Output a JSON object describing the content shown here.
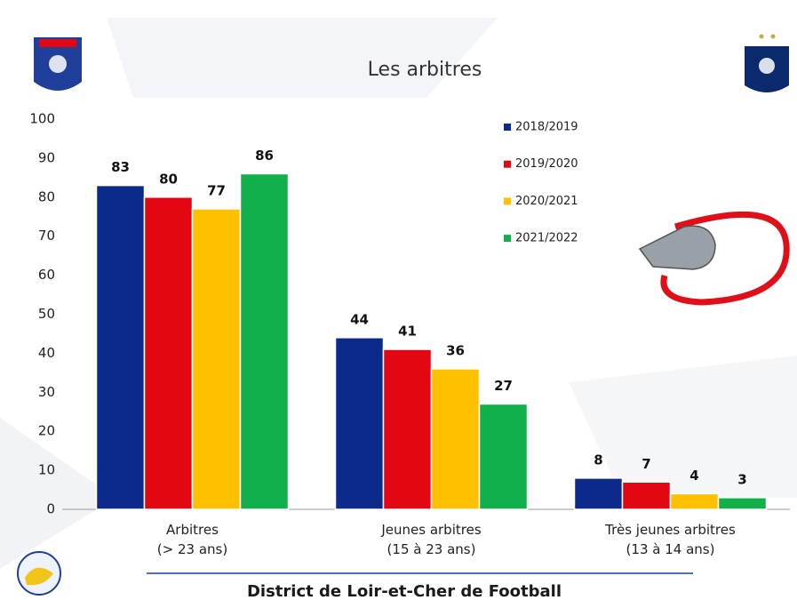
{
  "chart_data": {
    "type": "bar",
    "title": "Les arbitres",
    "footer": "District de Loir-et-Cher de Football",
    "categories": [
      "Arbitres\n(> 23 ans)",
      "Jeunes arbitres\n(15 à 23 ans)",
      "Très jeunes arbitres\n(13 à 14 ans)"
    ],
    "series": [
      {
        "name": "2018/2019",
        "color": "#0b2a8a",
        "values": [
          83,
          44,
          8
        ]
      },
      {
        "name": "2019/2020",
        "color": "#e30613",
        "values": [
          80,
          41,
          7
        ]
      },
      {
        "name": "2020/2021",
        "color": "#ffc000",
        "values": [
          77,
          36,
          4
        ]
      },
      {
        "name": "2021/2022",
        "color": "#12b04a",
        "values": [
          86,
          27,
          3
        ]
      }
    ],
    "ylim": [
      0,
      100
    ],
    "yticks": [
      0,
      10,
      20,
      30,
      40,
      50,
      60,
      70,
      80,
      90,
      100
    ],
    "grid": false,
    "legend": "top-right"
  }
}
